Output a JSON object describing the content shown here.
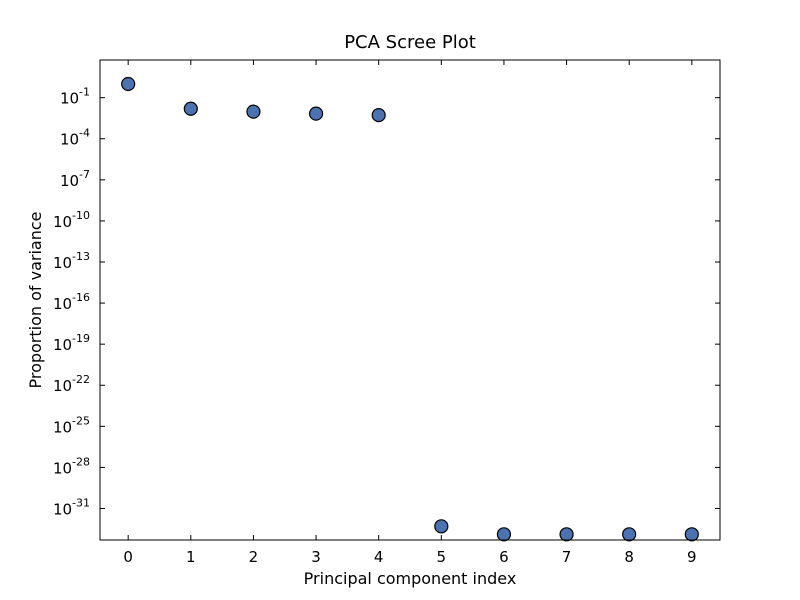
{
  "chart_data": {
    "type": "scatter",
    "title": "PCA Scree Plot",
    "xlabel": "Principal component index",
    "ylabel": "Proportion of variance",
    "x": [
      0,
      1,
      2,
      3,
      4,
      5,
      6,
      7,
      8,
      9
    ],
    "y": [
      1.0,
      0.0155,
      0.0095,
      0.0068,
      0.0053,
      5e-33,
      1.3e-33,
      1.3e-33,
      1.3e-33,
      1.3e-33
    ],
    "yscale": "log",
    "xlim": [
      -0.45,
      9.45
    ],
    "ylim_exponent": [
      -33.3,
      1.75
    ],
    "x_ticks": [
      "0",
      "1",
      "2",
      "3",
      "4",
      "5",
      "6",
      "7",
      "8",
      "9"
    ],
    "y_ticks": [
      {
        "base": "10",
        "exp": "-1"
      },
      {
        "base": "10",
        "exp": "-4"
      },
      {
        "base": "10",
        "exp": "-7"
      },
      {
        "base": "10",
        "exp": "-10"
      },
      {
        "base": "10",
        "exp": "-13"
      },
      {
        "base": "10",
        "exp": "-16"
      },
      {
        "base": "10",
        "exp": "-19"
      },
      {
        "base": "10",
        "exp": "-22"
      },
      {
        "base": "10",
        "exp": "-25"
      },
      {
        "base": "10",
        "exp": "-28"
      },
      {
        "base": "10",
        "exp": "-31"
      }
    ],
    "grid": false,
    "marker_color": "#4c72b0",
    "marker_edge_color": "#000000"
  }
}
